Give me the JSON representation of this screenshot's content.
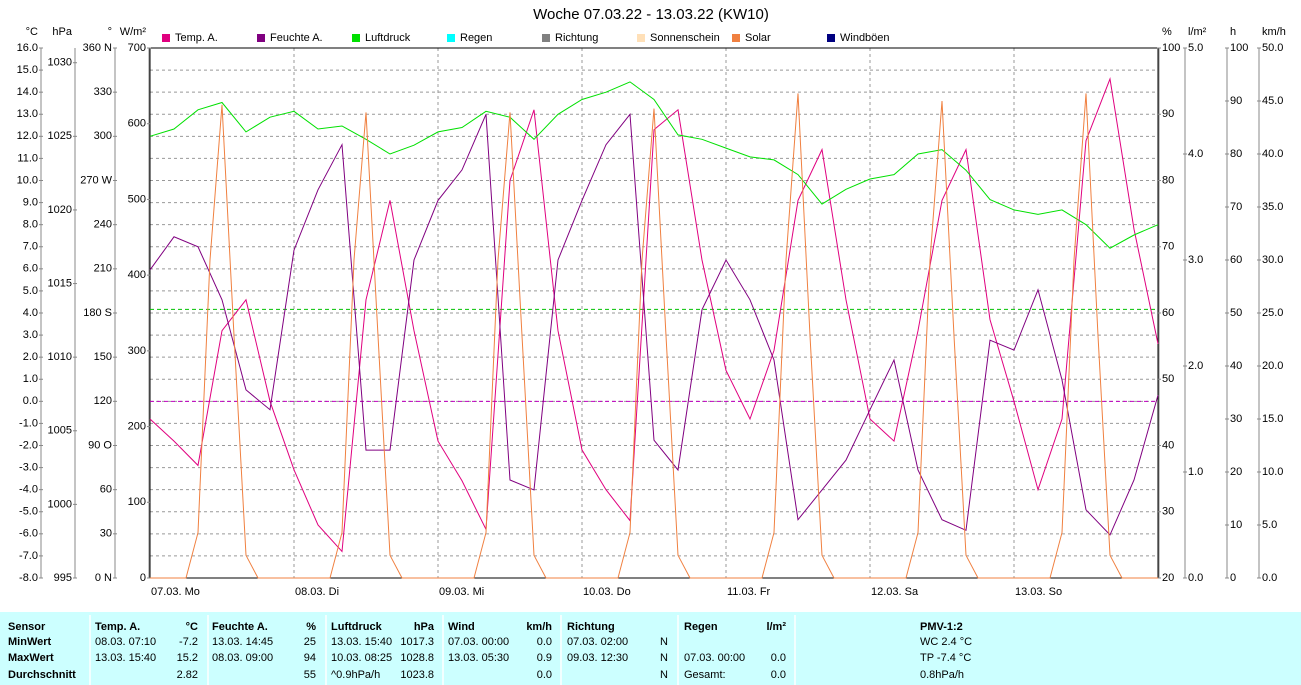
{
  "chart_data": {
    "type": "line",
    "title": "Woche 07.03.22 - 13.03.22 (KW10)",
    "xlim": [
      0,
      168
    ],
    "xticks": [
      {
        "value": 0,
        "label": "07.03. Mo"
      },
      {
        "value": 24,
        "label": "08.03. Di"
      },
      {
        "value": 48,
        "label": "09.03. Mi"
      },
      {
        "value": 72,
        "label": "10.03. Do"
      },
      {
        "value": 96,
        "label": "11.03. Fr"
      },
      {
        "value": 120,
        "label": "12.03. Sa"
      },
      {
        "value": 144,
        "label": "13.03. So"
      }
    ],
    "grid": true,
    "axes": [
      {
        "unit": "°C",
        "side": "left",
        "color": "#d0005f",
        "ylim": [
          -8,
          16
        ],
        "ticks": [
          {
            "value": 16,
            "label": "16.0"
          },
          {
            "value": 15,
            "label": "15.0"
          },
          {
            "value": 14,
            "label": "14.0"
          },
          {
            "value": 13,
            "label": "13.0"
          },
          {
            "value": 12,
            "label": "12.0"
          },
          {
            "value": 11,
            "label": "11.0"
          },
          {
            "value": 10,
            "label": "10.0"
          },
          {
            "value": 9,
            "label": "9.0"
          },
          {
            "value": 8,
            "label": "8.0"
          },
          {
            "value": 7,
            "label": "7.0"
          },
          {
            "value": 6,
            "label": "6.0"
          },
          {
            "value": 5,
            "label": "5.0"
          },
          {
            "value": 4,
            "label": "4.0"
          },
          {
            "value": 3,
            "label": "3.0"
          },
          {
            "value": 2,
            "label": "2.0"
          },
          {
            "value": 1,
            "label": "1.0"
          },
          {
            "value": 0,
            "label": "0.0"
          },
          {
            "value": -1,
            "label": "-1.0"
          },
          {
            "value": -2,
            "label": "-2.0"
          },
          {
            "value": -3,
            "label": "-3.0"
          },
          {
            "value": -4,
            "label": "-4.0"
          },
          {
            "value": -5,
            "label": "-5.0"
          },
          {
            "value": -6,
            "label": "-6.0"
          },
          {
            "value": -7,
            "label": "-7.0"
          },
          {
            "value": -8,
            "label": "-8.0"
          }
        ]
      },
      {
        "unit": "hPa",
        "side": "left",
        "color": "#00c000",
        "ylim": [
          995,
          1031
        ],
        "ticks": [
          1030,
          1025,
          1020,
          1015,
          1010,
          1005,
          1000,
          995
        ]
      },
      {
        "unit": "°",
        "side": "left",
        "color": "#404040",
        "ylim": [
          0,
          360
        ],
        "ticks": [
          {
            "value": 360,
            "label": "360 N"
          },
          330,
          300,
          {
            "value": 270,
            "label": "270 W"
          },
          240,
          210,
          {
            "value": 180,
            "label": "180 S"
          },
          150,
          120,
          {
            "value": 90,
            "label": "90 O"
          },
          60,
          30,
          {
            "value": 0,
            "label": "0 N"
          }
        ]
      },
      {
        "unit": "W/m²",
        "side": "left",
        "color": "#e07030",
        "ylim": [
          0,
          700
        ],
        "ticks": [
          700,
          600,
          500,
          400,
          300,
          200,
          100,
          0
        ]
      },
      {
        "unit": "%",
        "side": "right",
        "color": "#800080",
        "ylim": [
          20,
          100
        ],
        "ticks": [
          100,
          90,
          80,
          70,
          60,
          50,
          40,
          30,
          20
        ]
      },
      {
        "unit": "l/m²",
        "side": "right",
        "color": "#00c8c8",
        "ylim": [
          0,
          5
        ],
        "ticks": [
          {
            "value": 5,
            "label": "5.0"
          },
          {
            "value": 4,
            "label": "4.0"
          },
          {
            "value": 3,
            "label": "3.0"
          },
          {
            "value": 2,
            "label": "2.0"
          },
          {
            "value": 1,
            "label": "1.0"
          },
          {
            "value": 0,
            "label": "0.0"
          }
        ]
      },
      {
        "unit": "h",
        "side": "right",
        "color": "#e0c088",
        "ylim": [
          0,
          100
        ],
        "ticks": [
          100,
          90,
          80,
          70,
          60,
          50,
          40,
          30,
          20,
          10,
          0
        ]
      },
      {
        "unit": "km/h",
        "side": "right",
        "color": "#000080",
        "ylim": [
          0,
          50
        ],
        "ticks": [
          {
            "value": 50,
            "label": "50.0"
          },
          {
            "value": 45,
            "label": "45.0"
          },
          {
            "value": 40,
            "label": "40.0"
          },
          {
            "value": 35,
            "label": "35.0"
          },
          {
            "value": 30,
            "label": "30.0"
          },
          {
            "value": 25,
            "label": "25.0"
          },
          {
            "value": 20,
            "label": "20.0"
          },
          {
            "value": 15,
            "label": "15.0"
          },
          {
            "value": 10,
            "label": "10.0"
          },
          {
            "value": 5,
            "label": "5.0"
          },
          {
            "value": 0,
            "label": "0.0"
          }
        ]
      }
    ],
    "x": [
      0,
      4,
      8,
      12,
      16,
      20,
      24,
      28,
      32,
      36,
      40,
      44,
      48,
      52,
      56,
      60,
      64,
      68,
      72,
      76,
      80,
      84,
      88,
      92,
      96,
      100,
      104,
      108,
      112,
      116,
      120,
      124,
      128,
      132,
      136,
      140,
      144,
      148,
      152,
      156,
      160,
      164,
      168
    ],
    "series": [
      {
        "name": "Temp. A.",
        "color": "#e0007f",
        "axis": 0,
        "values": [
          -0.8,
          -1.8,
          -2.9,
          3.2,
          4.6,
          0.0,
          -3.1,
          -5.6,
          -6.8,
          4.6,
          9.1,
          3.2,
          -1.8,
          -3.6,
          -5.8,
          10.0,
          13.2,
          3.2,
          -2.2,
          -4.0,
          -5.4,
          12.3,
          13.2,
          6.4,
          1.4,
          -0.8,
          2.3,
          9.1,
          11.4,
          4.6,
          -0.8,
          -1.8,
          3.2,
          9.1,
          11.4,
          3.7,
          0.0,
          -4.0,
          -0.8,
          11.8,
          14.6,
          7.8,
          2.6
        ]
      },
      {
        "name": "Feuchte A.",
        "color": "#800080",
        "axis": 4,
        "values": [
          66.5,
          71.5,
          70,
          62,
          48.4,
          45.4,
          69.5,
          78.6,
          85.4,
          39.3,
          39.3,
          68,
          77,
          81.6,
          90,
          34.8,
          33.3,
          68,
          77,
          85.4,
          90,
          40.8,
          36.3,
          60.5,
          68,
          62,
          52.9,
          28.8,
          33.3,
          37.8,
          45.4,
          52.9,
          36.3,
          28.8,
          27.2,
          55.9,
          54.4,
          63.5,
          49.9,
          30.3,
          26.5,
          34.8,
          47.6
        ]
      },
      {
        "name": "Luftdruck",
        "color": "#00e000",
        "axis": 1,
        "values": [
          1025.0,
          1025.5,
          1026.8,
          1027.3,
          1025.3,
          1026.3,
          1026.7,
          1025.5,
          1025.7,
          1024.8,
          1023.8,
          1024.4,
          1025.3,
          1025.6,
          1026.7,
          1026.3,
          1024.8,
          1026.5,
          1027.5,
          1028.0,
          1028.7,
          1027.5,
          1025.1,
          1024.8,
          1024.2,
          1023.6,
          1023.4,
          1022.4,
          1020.4,
          1021.4,
          1022.1,
          1022.4,
          1023.8,
          1024.1,
          1022.7,
          1020.7,
          1020.0,
          1019.7,
          1020.0,
          1019.0,
          1017.4,
          1018.3,
          1019.0
        ]
      },
      {
        "name": "Regen",
        "color": "#00ffff"
      },
      {
        "name": "Richtung",
        "color": "#808080"
      },
      {
        "name": "Sonnenschein",
        "color": "#ffe0b8"
      },
      {
        "name": "Solar",
        "color": "#f08040",
        "axis": 3,
        "x": [
          0,
          6,
          8,
          10,
          12,
          14,
          16,
          18,
          30,
          32,
          34,
          36,
          38,
          40,
          42,
          54,
          56,
          58,
          60,
          62,
          64,
          66,
          78,
          80,
          82,
          84,
          86,
          88,
          90,
          102,
          104,
          106,
          108,
          110,
          112,
          114,
          126,
          128,
          130,
          132,
          134,
          136,
          138,
          150,
          152,
          154,
          156,
          158,
          160,
          162,
          168
        ],
        "values": [
          0,
          0,
          60,
          420,
          625,
          320,
          30,
          0,
          0,
          60,
          420,
          615,
          320,
          30,
          0,
          0,
          60,
          420,
          615,
          320,
          30,
          0,
          0,
          60,
          420,
          620,
          320,
          30,
          0,
          0,
          60,
          420,
          640,
          320,
          30,
          0,
          0,
          60,
          420,
          630,
          320,
          30,
          0,
          0,
          60,
          420,
          640,
          320,
          30,
          0,
          0
        ]
      },
      {
        "name": "Windböen",
        "color": "#000080"
      }
    ],
    "reference_lines": [
      {
        "axis": 0,
        "value": 0,
        "color": "#c000c0"
      },
      {
        "axis": 1,
        "value": 1013.25,
        "color": "#00c000"
      }
    ]
  },
  "table": {
    "groups": [
      {
        "header": [
          "Sensor"
        ],
        "rows": [
          [
            "MinWert"
          ],
          [
            "MaxWert"
          ],
          [
            "Durchschnitt"
          ]
        ]
      },
      {
        "header": [
          "Temp. A.",
          "°C"
        ],
        "rows": [
          [
            "08.03.  07:10",
            "-7.2"
          ],
          [
            "13.03.  15:40",
            "15.2"
          ],
          [
            "2.82"
          ]
        ]
      },
      {
        "header": [
          "Feuchte A.",
          "%"
        ],
        "rows": [
          [
            "13.03.  14:45",
            "25"
          ],
          [
            "08.03.  09:00",
            "94"
          ],
          [
            "55"
          ]
        ]
      },
      {
        "header": [
          "Luftdruck",
          "hPa"
        ],
        "rows": [
          [
            "13.03.  15:40",
            "1017.3"
          ],
          [
            "10.03.  08:25",
            "1028.8"
          ],
          [
            "^0.9hPa/h",
            "1023.8"
          ]
        ]
      },
      {
        "header": [
          "Wind",
          "km/h"
        ],
        "rows": [
          [
            "07.03.  00:00",
            "0.0"
          ],
          [
            "13.03.  05:30",
            "0.9"
          ],
          [
            "0.0"
          ]
        ]
      },
      {
        "header": [
          "Richtung"
        ],
        "rows": [
          [
            "07.03.  02:00",
            "N"
          ],
          [
            "09.03.  12:30",
            "N"
          ],
          [
            "N"
          ]
        ]
      },
      {
        "header": [
          "Regen",
          "l/m²"
        ],
        "rows": [
          [],
          [
            "07.03.  00:00",
            "0.0"
          ],
          [
            "Gesamt:",
            "0.0"
          ]
        ]
      },
      {
        "header": [
          "PMV-1:2"
        ],
        "rows": [
          [
            "WC 2.4 °C"
          ],
          [
            "TP -7.4 °C"
          ],
          [
            "0.8hPa/h"
          ]
        ]
      }
    ]
  }
}
